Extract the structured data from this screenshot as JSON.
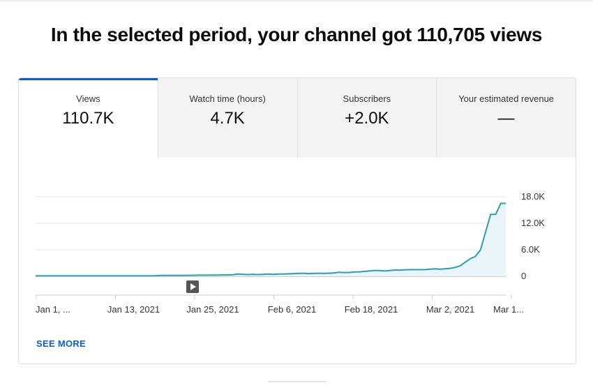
{
  "headline": "In the selected period, your channel got 110,705 views",
  "tabs": [
    {
      "label": "Views",
      "value": "110.7K",
      "active": true
    },
    {
      "label": "Watch time (hours)",
      "value": "4.7K",
      "active": false
    },
    {
      "label": "Subscribers",
      "value": "+2.0K",
      "active": false
    },
    {
      "label": "Your estimated revenue",
      "value": "—",
      "active": false
    }
  ],
  "see_more_label": "SEE MORE",
  "icons": {
    "marker": "play-icon"
  },
  "colors": {
    "accent": "#065fd4",
    "line": "#2a9db5",
    "fill": "#e9f5f8"
  },
  "chart_data": {
    "type": "area",
    "title": "",
    "xlabel": "",
    "ylabel": "",
    "y_axis_position": "right",
    "ylim": [
      0,
      18000
    ],
    "yticks": [
      0,
      6000,
      12000,
      18000
    ],
    "ytick_labels": [
      "0",
      "6.0K",
      "12.0K",
      "18.0K"
    ],
    "xtick_labels": [
      "Jan 1, ...",
      "Jan 13, 2021",
      "Jan 25, 2021",
      "Feb 6, 2021",
      "Feb 18, 2021",
      "Mar 2, 2021",
      "Mar 1..."
    ],
    "grid": true,
    "series": [
      {
        "values": [
          100,
          100,
          100,
          100,
          100,
          100,
          100,
          100,
          100,
          100,
          100,
          100,
          100,
          100,
          100,
          100,
          100,
          100,
          100,
          100,
          100,
          100,
          100,
          100,
          150,
          200,
          200,
          200,
          200,
          200,
          220,
          220,
          250,
          250,
          250,
          270,
          280,
          300,
          320,
          350,
          500,
          450,
          400,
          450,
          400,
          450,
          500,
          450,
          500,
          500,
          550,
          600,
          650,
          700,
          600,
          650,
          700,
          650,
          700,
          750,
          900,
          850,
          850,
          1000,
          1000,
          1100,
          1200,
          1300,
          1300,
          1200,
          1300,
          1400,
          1400,
          1450,
          1500,
          1500,
          1500,
          1500,
          1600,
          1700,
          1600,
          1700,
          1800,
          2000,
          2400,
          3200,
          4000,
          4500,
          6000,
          10000,
          14000,
          14000,
          16500,
          16500
        ]
      }
    ]
  }
}
